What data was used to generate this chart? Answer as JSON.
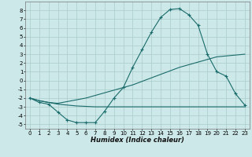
{
  "xlabel": "Humidex (Indice chaleur)",
  "background_color": "#cce8e8",
  "grid_color": "#aacccc",
  "line_color": "#1a6b6b",
  "xlim": [
    -0.5,
    23.5
  ],
  "ylim": [
    -5.5,
    9.0
  ],
  "xticks": [
    0,
    1,
    2,
    3,
    4,
    5,
    6,
    7,
    8,
    9,
    10,
    11,
    12,
    13,
    14,
    15,
    16,
    17,
    18,
    19,
    20,
    21,
    22,
    23
  ],
  "yticks": [
    -5,
    -4,
    -3,
    -2,
    -1,
    0,
    1,
    2,
    3,
    4,
    5,
    6,
    7,
    8
  ],
  "curve1_x": [
    0,
    1,
    2,
    3,
    4,
    5,
    6,
    7,
    8,
    9,
    10,
    11,
    12,
    13,
    14,
    15,
    16,
    17,
    18,
    19,
    20,
    21,
    22,
    23
  ],
  "curve1_y": [
    -2.0,
    -2.5,
    -2.7,
    -3.6,
    -4.5,
    -4.8,
    -4.8,
    -4.8,
    -3.5,
    -2.0,
    -0.8,
    1.5,
    3.5,
    5.5,
    7.2,
    8.1,
    8.2,
    7.5,
    6.3,
    3.0,
    1.0,
    0.5,
    -1.5,
    -2.8
  ],
  "curve2_x": [
    0,
    1,
    2,
    3,
    4,
    5,
    6,
    7,
    8,
    9,
    10,
    11,
    12,
    13,
    14,
    15,
    16,
    17,
    18,
    19,
    20,
    21,
    22,
    23
  ],
  "curve2_y": [
    -2.0,
    -2.3,
    -2.5,
    -2.6,
    -2.4,
    -2.2,
    -2.0,
    -1.7,
    -1.4,
    -1.1,
    -0.8,
    -0.5,
    -0.1,
    0.3,
    0.7,
    1.1,
    1.5,
    1.8,
    2.1,
    2.4,
    2.7,
    2.8,
    2.9,
    3.0
  ],
  "curve3_x": [
    0,
    1,
    2,
    3,
    4,
    5,
    6,
    7,
    8,
    9,
    10,
    11,
    12,
    13,
    14,
    15,
    16,
    17,
    18,
    19,
    20,
    21,
    22,
    23
  ],
  "curve3_y": [
    -2.0,
    -2.3,
    -2.5,
    -2.7,
    -2.8,
    -2.9,
    -2.95,
    -3.0,
    -3.0,
    -3.0,
    -3.0,
    -3.0,
    -3.0,
    -3.0,
    -3.0,
    -3.0,
    -3.0,
    -3.0,
    -3.0,
    -3.0,
    -3.0,
    -3.0,
    -3.0,
    -3.0
  ],
  "xlabel_fontsize": 6,
  "tick_fontsize": 5,
  "linewidth": 0.8,
  "markersize": 2.5
}
